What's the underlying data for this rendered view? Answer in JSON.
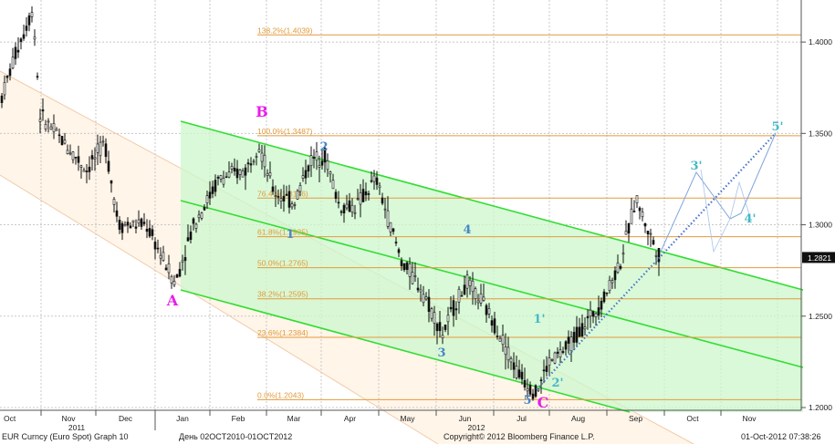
{
  "chart_data": {
    "type": "candlestick",
    "instrument": "EUR Curncy (Euro Spot) Graph 10",
    "range_label": "День 02OCT2010-01OCT2012",
    "copyright": "Copyright© 2012 Bloomberg Finance L.P.",
    "timestamp": "01-Oct-2012 07:38:26",
    "last_price": "1.2821",
    "ylim": [
      1.1985,
      1.423
    ],
    "y_ticks": [
      "1.2000",
      "1.2500",
      "1.3000",
      "1.3500",
      "1.4000"
    ],
    "x_months": [
      "Oct",
      "Nov",
      "Dec",
      "Jan",
      "Feb",
      "Mar",
      "Apr",
      "May",
      "Jun",
      "Jul",
      "Aug",
      "Sep",
      "Oct",
      "Nov"
    ],
    "x_years": [
      "2011",
      "2012"
    ],
    "fib_levels": [
      {
        "label": "0.0%(1.2043)",
        "value": 1.2043
      },
      {
        "label": "23.6%(1.2384)",
        "value": 1.2384
      },
      {
        "label": "38.2%(1.2595)",
        "value": 1.2595
      },
      {
        "label": "50.0%(1.2765)",
        "value": 1.2765
      },
      {
        "label": "61.8%(1.2935)",
        "value": 1.2935
      },
      {
        "label": "76.4%(1.3146)",
        "value": 1.3146
      },
      {
        "label": "100.0%(1.3487)",
        "value": 1.3487
      },
      {
        "label": "138.2%(1.4039)",
        "value": 1.4039
      }
    ],
    "wave_labels": {
      "A": "A",
      "B": "B",
      "C": "C",
      "w1": "1",
      "w2": "2",
      "w3": "3",
      "w4": "4",
      "w5": "5",
      "p1": "1'",
      "p2": "2'",
      "p3": "3'",
      "p4": "4'",
      "p5": "5'"
    },
    "colors": {
      "up": "#111111",
      "down": "#111111",
      "fib": "#e39a3c",
      "channel": "#33dd33",
      "channel_fill": "#ccf7cc",
      "magenta": "#e81ee8",
      "wave_blue": "#4a86c8",
      "projection": "#45b8c8",
      "grid": "#c8c8c8"
    }
  }
}
